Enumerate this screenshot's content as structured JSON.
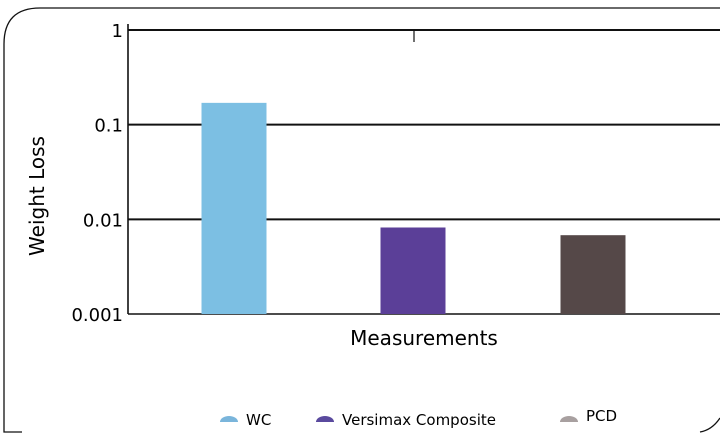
{
  "chart_data": {
    "type": "bar",
    "yscale": "log",
    "ylabel": "Weight Loss",
    "xlabel": "Measurements",
    "ylim": [
      0.001,
      1
    ],
    "yticks": [
      "1",
      "0.1",
      "0.01",
      "0.001"
    ],
    "grid": true,
    "legend": "bottom",
    "categories": [
      "WC",
      "Versimax Composite",
      "PCD"
    ],
    "values": [
      0.17,
      0.0082,
      0.0068
    ],
    "colors": [
      "#7cbfe3",
      "#5b3f98",
      "#554848"
    ],
    "legend_colors": [
      "#7ab5db",
      "#5a4a9e",
      "#a8a0a0"
    ]
  }
}
